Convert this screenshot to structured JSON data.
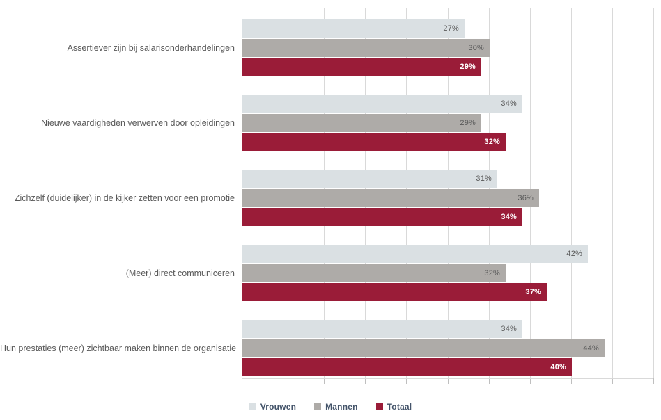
{
  "chart_data": {
    "type": "bar",
    "orientation": "horizontal",
    "title": "",
    "xlabel": "",
    "ylabel": "",
    "categories": [
      "Assertiever zijn bij salarisonderhandelingen",
      "Nieuwe vaardigheden verwerven door opleidingen",
      "Zichzelf (duidelijker) in de kijker zetten voor een promotie",
      "(Meer) direct communiceren",
      "Hun prestaties (meer) zichtbaar maken binnen de organisatie"
    ],
    "series": [
      {
        "name": "Vrouwen",
        "color": "#dae0e3",
        "label_color": "#595959",
        "label_bold": false,
        "values": [
          27,
          34,
          31,
          42,
          34
        ],
        "labels": [
          "27%",
          "34%",
          "31%",
          "42%",
          "34%"
        ]
      },
      {
        "name": "Mannen",
        "color": "#aeaba8",
        "label_color": "#595959",
        "label_bold": false,
        "values": [
          30,
          29,
          36,
          32,
          44
        ],
        "labels": [
          "30%",
          "29%",
          "36%",
          "32%",
          "44%"
        ]
      },
      {
        "name": "Totaal",
        "color": "#9a1c38",
        "label_color": "#ffffff",
        "label_bold": true,
        "values": [
          29,
          32,
          34,
          37,
          40
        ],
        "labels": [
          "29%",
          "32%",
          "34%",
          "37%",
          "40%"
        ]
      }
    ],
    "value_suffix": "%",
    "xlim": [
      0,
      50
    ],
    "gridline_step": 5,
    "grid": true,
    "legend_position": "bottom"
  },
  "styles": {
    "gridline_color": "#d9d9d9",
    "axis_color": "#bfbfbf",
    "category_label_color": "#595959",
    "legend_text_color": "#44546a",
    "background_color": "#ffffff"
  }
}
